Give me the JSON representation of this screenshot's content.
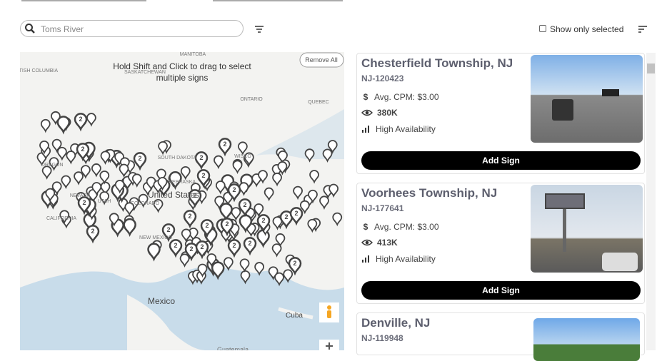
{
  "search": {
    "placeholder": "Toms River"
  },
  "filter_bar": {
    "show_only_selected": "Show only selected"
  },
  "map": {
    "hint": "Hold Shift and Click to drag to select multiple signs",
    "remove_all": "Remove All",
    "labels": [
      "BRITISH COLUMBIA",
      "MANITOBA",
      "SASKATCHEWAN",
      "ONTARIO",
      "QUEBEC",
      "OREGON",
      "SOUTH DAKOTA",
      "NEBRASKA",
      "NEVADA",
      "UTAH",
      "COLORADO",
      "CALIFORNIA",
      "United States",
      "NEW MEXICO",
      "WISCO",
      "Mexico",
      "Cuba",
      "Guatemala"
    ],
    "cluster_labels": [
      "2",
      "2",
      "2",
      "2",
      "2",
      "2",
      "2",
      "2",
      "2",
      "2",
      "2",
      "2",
      "2",
      "2",
      "2",
      "2",
      "2",
      "2",
      "2",
      "2",
      "2",
      "2",
      "2",
      "2"
    ]
  },
  "cards": [
    {
      "title": "Chesterfield Township, NJ",
      "id": "NJ-120423",
      "cpm": "Avg. CPM: $3.00",
      "impressions": "380K",
      "availability": "High Availability",
      "button": "Add Sign"
    },
    {
      "title": "Voorhees Township, NJ",
      "id": "NJ-177641",
      "cpm": "Avg. CPM: $3.00",
      "impressions": "413K",
      "availability": "High Availability",
      "button": "Add Sign"
    },
    {
      "title": "Denville, NJ",
      "id": "NJ-119948"
    }
  ]
}
